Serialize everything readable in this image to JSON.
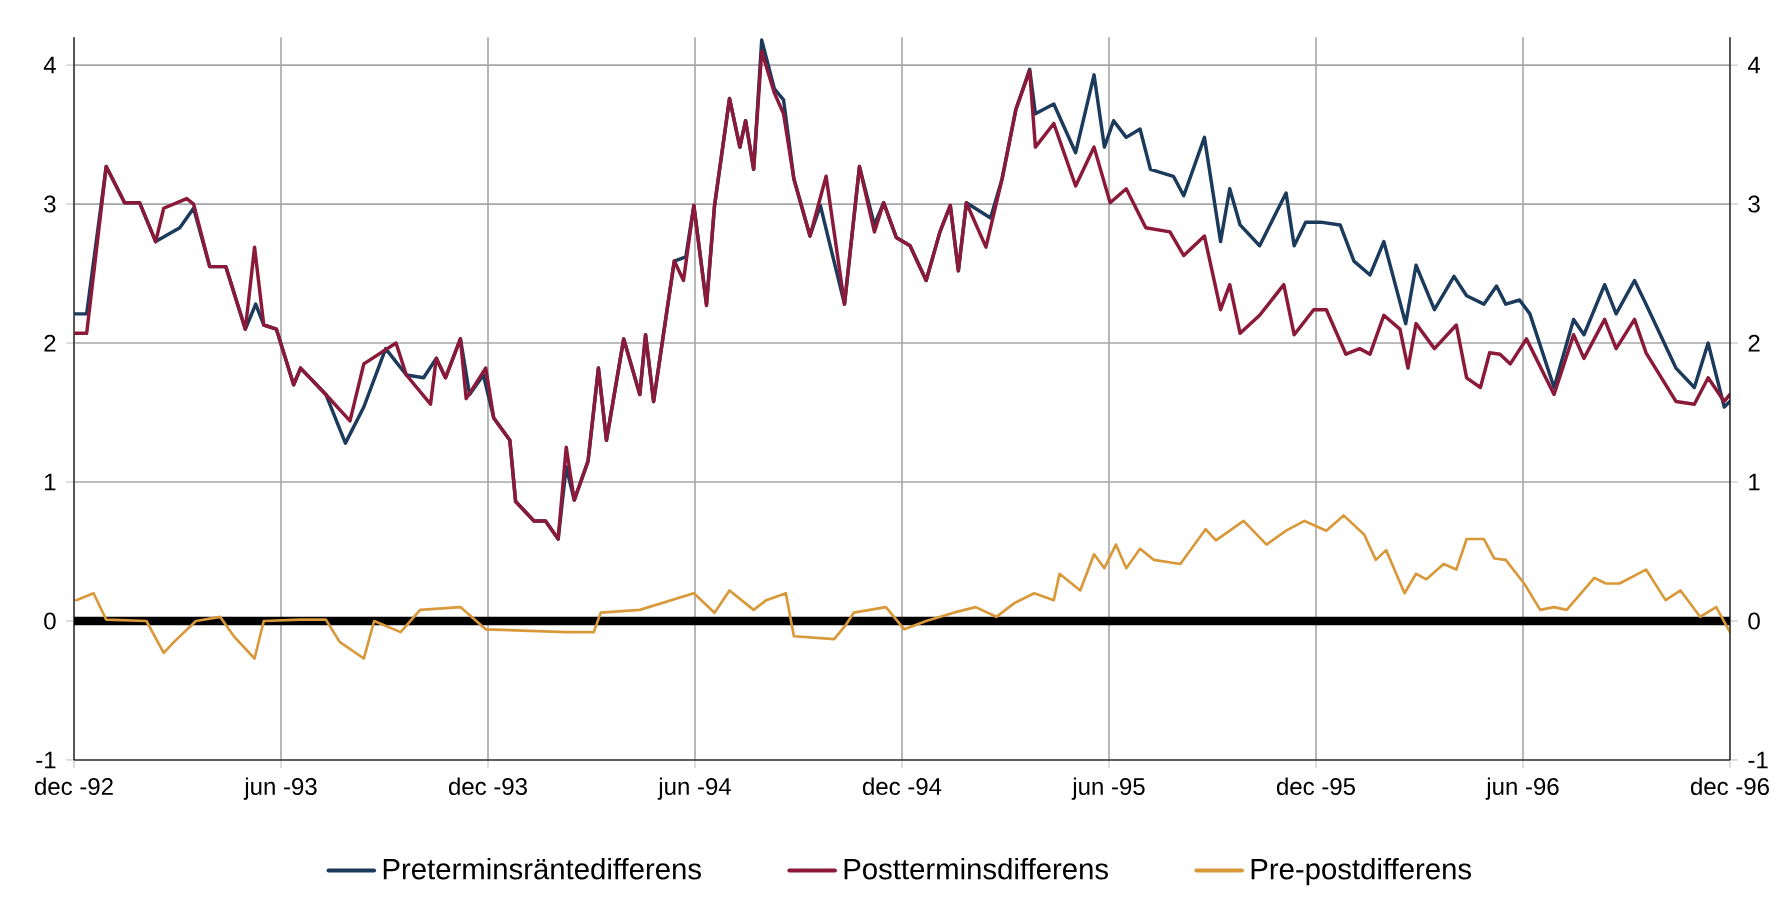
{
  "chart_data": {
    "type": "line",
    "xlim": [
      "1992-12-01",
      "1996-12-01"
    ],
    "xticks": [
      {
        "value": "1992-12-01",
        "label": "dec -92"
      },
      {
        "value": "1993-06-01",
        "label": "jun -93"
      },
      {
        "value": "1993-12-01",
        "label": "dec -93"
      },
      {
        "value": "1994-06-01",
        "label": "jun -94"
      },
      {
        "value": "1994-12-01",
        "label": "dec -94"
      },
      {
        "value": "1995-06-01",
        "label": "jun -95"
      },
      {
        "value": "1995-12-01",
        "label": "dec -95"
      },
      {
        "value": "1996-06-01",
        "label": "jun -96"
      },
      {
        "value": "1996-12-01",
        "label": "dec -96"
      }
    ],
    "ylim": [
      -1,
      4.2
    ],
    "yticks": [
      -1,
      0,
      1,
      2,
      3,
      4
    ],
    "y2lim": [
      -1,
      4.2
    ],
    "y2ticks": [
      -1,
      0,
      1,
      2,
      3,
      4
    ],
    "grid": true,
    "legend": "bottom",
    "ref_lines": [
      {
        "axis": "y",
        "value": 0,
        "color": "#000000"
      }
    ],
    "series": [
      {
        "name": "Preterminsräntedifferens",
        "color": "#1b3a5c",
        "x": [
          "1992-12-01",
          "1992-12-12",
          "1992-12-29",
          "1993-01-15",
          "1993-01-28",
          "1993-02-12",
          "1993-03-03",
          "1993-03-15",
          "1993-03-29",
          "1993-04-13",
          "1993-04-30",
          "1993-05-09",
          "1993-05-16",
          "1993-05-27",
          "1993-06-12",
          "1993-06-18",
          "1993-07-10",
          "1993-07-27",
          "1993-08-13",
          "1993-09-02",
          "1993-09-20",
          "1993-10-05",
          "1993-10-16",
          "1993-10-24",
          "1993-11-07",
          "1993-11-15",
          "1993-11-27",
          "1993-12-06",
          "1993-12-20",
          "1993-12-25",
          "1994-01-11",
          "1994-01-21",
          "1994-02-02",
          "1994-02-09",
          "1994-02-16",
          "1994-02-28",
          "1994-03-07",
          "1994-03-14",
          "1994-03-29",
          "1994-04-13",
          "1994-04-18",
          "1994-04-25",
          "1994-05-06",
          "1994-05-13",
          "1994-05-23",
          "1994-05-30",
          "1994-06-11",
          "1994-06-18",
          "1994-07-01",
          "1994-07-10",
          "1994-07-15",
          "1994-07-22",
          "1994-07-29",
          "1994-08-10",
          "1994-08-18",
          "1994-08-27",
          "1994-09-11",
          "1994-09-20",
          "1994-10-11",
          "1994-10-24",
          "1994-11-07",
          "1994-11-15",
          "1994-11-26",
          "1994-12-08",
          "1994-12-22",
          "1995-01-04",
          "1995-01-13",
          "1995-01-20",
          "1995-01-27",
          "1995-02-18",
          "1995-02-28",
          "1995-03-10",
          "1995-03-22",
          "1995-03-27",
          "1995-04-13",
          "1995-05-02",
          "1995-05-18",
          "1995-05-27",
          "1995-06-05",
          "1995-06-16",
          "1995-06-28",
          "1995-07-07",
          "1995-07-27",
          "1995-08-06",
          "1995-08-24",
          "1995-09-08",
          "1995-09-16",
          "1995-09-25",
          "1995-10-12",
          "1995-10-21",
          "1995-11-05",
          "1995-11-12",
          "1995-11-22",
          "1995-12-05",
          "1995-12-22",
          "1996-01-04",
          "1996-01-18",
          "1996-01-30",
          "1996-02-19",
          "1996-02-28",
          "1996-03-14",
          "1996-04-01",
          "1996-04-12",
          "1996-04-27",
          "1996-05-08",
          "1996-05-16",
          "1996-05-28",
          "1996-06-07",
          "1996-06-28",
          "1996-07-15",
          "1996-07-24",
          "1996-08-12",
          "1996-08-22",
          "1996-09-08",
          "1996-09-18",
          "1996-10-14",
          "1996-10-30",
          "1996-11-12",
          "1996-11-26",
          "1996-12-01"
        ],
        "values": [
          2.21,
          2.21,
          3.27,
          3.01,
          3.01,
          2.73,
          2.83,
          2.97,
          2.55,
          2.55,
          2.1,
          2.28,
          2.13,
          2.1,
          1.7,
          1.82,
          1.63,
          1.28,
          1.54,
          1.96,
          1.77,
          1.75,
          1.89,
          1.75,
          2.03,
          1.63,
          1.77,
          1.46,
          1.3,
          0.86,
          0.72,
          0.72,
          0.59,
          1.11,
          0.87,
          1.15,
          1.82,
          1.3,
          2.03,
          1.63,
          2.06,
          1.58,
          2.2,
          2.59,
          2.62,
          2.99,
          2.28,
          2.99,
          3.76,
          3.41,
          3.6,
          3.25,
          4.18,
          3.83,
          3.75,
          3.18,
          2.77,
          2.99,
          2.28,
          3.27,
          2.85,
          3.01,
          2.76,
          2.7,
          2.45,
          2.8,
          2.99,
          2.52,
          3.01,
          2.9,
          3.18,
          3.68,
          3.97,
          3.65,
          3.72,
          3.37,
          3.93,
          3.41,
          3.6,
          3.48,
          3.54,
          3.25,
          3.2,
          3.06,
          3.48,
          2.73,
          3.11,
          2.85,
          2.7,
          2.85,
          3.08,
          2.7,
          2.87,
          2.87,
          2.85,
          2.59,
          2.49,
          2.73,
          2.14,
          2.56,
          2.24,
          2.48,
          2.34,
          2.28,
          2.41,
          2.28,
          2.31,
          2.21,
          1.68,
          2.17,
          2.06,
          2.42,
          2.21,
          2.45,
          2.28,
          1.82,
          1.68,
          2.0,
          1.54,
          1.58
        ]
      },
      {
        "name": "Postterminsdifferens",
        "color": "#8b1a3a",
        "x": [
          "1992-12-01",
          "1992-12-12",
          "1992-12-29",
          "1993-01-15",
          "1993-01-28",
          "1993-02-12",
          "1993-02-19",
          "1993-03-09",
          "1993-03-15",
          "1993-03-29",
          "1993-04-13",
          "1993-04-30",
          "1993-05-08",
          "1993-05-16",
          "1993-05-27",
          "1993-06-12",
          "1993-06-18",
          "1993-07-10",
          "1993-08-01",
          "1993-08-13",
          "1993-09-11",
          "1993-09-20",
          "1993-10-11",
          "1993-10-16",
          "1993-10-24",
          "1993-11-07",
          "1993-11-12",
          "1993-11-29",
          "1993-12-06",
          "1993-12-20",
          "1993-12-25",
          "1994-01-11",
          "1994-01-21",
          "1994-02-02",
          "1994-02-09",
          "1994-02-16",
          "1994-02-28",
          "1994-03-07",
          "1994-03-14",
          "1994-03-29",
          "1994-04-13",
          "1994-04-18",
          "1994-04-25",
          "1994-05-06",
          "1994-05-13",
          "1994-05-21",
          "1994-05-30",
          "1994-06-11",
          "1994-06-18",
          "1994-07-01",
          "1994-07-10",
          "1994-07-15",
          "1994-07-22",
          "1994-07-29",
          "1994-08-10",
          "1994-08-18",
          "1994-08-27",
          "1994-09-11",
          "1994-09-25",
          "1994-10-11",
          "1994-10-24",
          "1994-11-07",
          "1994-11-15",
          "1994-11-26",
          "1994-12-08",
          "1994-12-22",
          "1995-01-04",
          "1995-01-13",
          "1995-01-20",
          "1995-01-27",
          "1995-02-14",
          "1995-02-28",
          "1995-03-10",
          "1995-03-22",
          "1995-03-27",
          "1995-04-13",
          "1995-05-02",
          "1995-05-18",
          "1995-06-02",
          "1995-06-16",
          "1995-07-03",
          "1995-07-24",
          "1995-08-06",
          "1995-08-24",
          "1995-09-08",
          "1995-09-16",
          "1995-09-25",
          "1995-10-12",
          "1995-11-03",
          "1995-11-12",
          "1995-11-29",
          "1995-12-10",
          "1995-12-27",
          "1996-01-09",
          "1996-01-18",
          "1996-01-30",
          "1996-02-14",
          "1996-02-21",
          "1996-02-28",
          "1996-03-14",
          "1996-04-03",
          "1996-04-12",
          "1996-04-24",
          "1996-05-02",
          "1996-05-11",
          "1996-05-20",
          "1996-06-04",
          "1996-06-28",
          "1996-07-15",
          "1996-07-24",
          "1996-08-12",
          "1996-08-22",
          "1996-09-08",
          "1996-09-18",
          "1996-10-14",
          "1996-10-30",
          "1996-11-12",
          "1996-11-26",
          "1996-12-01"
        ],
        "values": [
          2.07,
          2.07,
          3.27,
          3.01,
          3.01,
          2.73,
          2.97,
          3.04,
          3.0,
          2.55,
          2.55,
          2.1,
          2.69,
          2.13,
          2.1,
          1.7,
          1.82,
          1.63,
          1.44,
          1.85,
          2.0,
          1.77,
          1.56,
          1.89,
          1.75,
          2.03,
          1.6,
          1.82,
          1.46,
          1.3,
          0.86,
          0.72,
          0.72,
          0.59,
          1.25,
          0.87,
          1.15,
          1.82,
          1.3,
          2.03,
          1.63,
          2.06,
          1.58,
          2.2,
          2.59,
          2.45,
          2.99,
          2.27,
          2.99,
          3.76,
          3.41,
          3.6,
          3.25,
          4.1,
          3.8,
          3.65,
          3.18,
          2.77,
          3.2,
          2.28,
          3.27,
          2.8,
          3.01,
          2.76,
          2.7,
          2.45,
          2.8,
          2.99,
          2.52,
          3.01,
          2.69,
          3.18,
          3.68,
          3.96,
          3.41,
          3.58,
          3.13,
          3.41,
          3.01,
          3.11,
          2.83,
          2.8,
          2.63,
          2.77,
          2.24,
          2.42,
          2.07,
          2.2,
          2.42,
          2.06,
          2.24,
          2.24,
          1.92,
          1.96,
          1.92,
          2.2,
          2.1,
          1.82,
          2.14,
          1.96,
          2.13,
          1.75,
          1.68,
          1.93,
          1.92,
          1.85,
          2.03,
          1.63,
          2.06,
          1.89,
          2.17,
          1.96,
          2.17,
          1.93,
          1.58,
          1.56,
          1.75,
          1.58,
          1.63
        ]
      },
      {
        "name": "Pre-postdifferens",
        "color": "#d9993a",
        "x": [
          "1992-12-03",
          "1992-12-18",
          "1992-12-29",
          "1993-02-04",
          "1993-02-19",
          "1993-02-28",
          "1993-03-17",
          "1993-04-08",
          "1993-04-20",
          "1993-05-08",
          "1993-05-16",
          "1993-06-18",
          "1993-07-10",
          "1993-07-22",
          "1993-08-13",
          "1993-08-22",
          "1993-09-15",
          "1993-10-02",
          "1993-11-07",
          "1993-11-29",
          "1994-02-09",
          "1994-03-03",
          "1994-03-09",
          "1994-04-13",
          "1994-05-30",
          "1994-06-18",
          "1994-07-01",
          "1994-07-22",
          "1994-08-03",
          "1994-08-20",
          "1994-08-27",
          "1994-10-02",
          "1994-10-12",
          "1994-10-19",
          "1994-11-17",
          "1994-12-03",
          "1994-12-22",
          "1995-01-16",
          "1995-02-05",
          "1995-02-23",
          "1995-03-09",
          "1995-03-26",
          "1995-04-13",
          "1995-04-18",
          "1995-05-06",
          "1995-05-18",
          "1995-05-27",
          "1995-06-07",
          "1995-06-16",
          "1995-06-28",
          "1995-07-10",
          "1995-08-03",
          "1995-08-25",
          "1995-09-04",
          "1995-09-28",
          "1995-10-18",
          "1995-11-05",
          "1995-11-21",
          "1995-12-10",
          "1995-12-25",
          "1996-01-13",
          "1996-01-23",
          "1996-02-02",
          "1996-02-18",
          "1996-02-28",
          "1996-03-07",
          "1996-03-22",
          "1996-04-03",
          "1996-04-12",
          "1996-04-27",
          "1996-05-06",
          "1996-05-16",
          "1996-06-02",
          "1996-06-16",
          "1996-06-28",
          "1996-07-09",
          "1996-08-03",
          "1996-08-13",
          "1996-08-25",
          "1996-09-18",
          "1996-10-05",
          "1996-10-18",
          "1996-11-05",
          "1996-11-19",
          "1996-12-01"
        ],
        "values": [
          0.15,
          0.2,
          0.01,
          0,
          -0.23,
          -0.15,
          0,
          0.03,
          -0.11,
          -0.27,
          0,
          0.01,
          0.01,
          -0.15,
          -0.27,
          0,
          -0.08,
          0.08,
          0.1,
          -0.06,
          -0.08,
          -0.08,
          0.06,
          0.08,
          0.2,
          0.06,
          0.22,
          0.08,
          0.15,
          0.2,
          -0.11,
          -0.13,
          -0.03,
          0.06,
          0.1,
          -0.06,
          0,
          0.06,
          0.1,
          0.03,
          0.13,
          0.2,
          0.15,
          0.34,
          0.22,
          0.48,
          0.38,
          0.55,
          0.38,
          0.52,
          0.44,
          0.41,
          0.66,
          0.58,
          0.72,
          0.55,
          0.65,
          0.72,
          0.65,
          0.76,
          0.62,
          0.44,
          0.51,
          0.2,
          0.34,
          0.3,
          0.41,
          0.37,
          0.59,
          0.59,
          0.45,
          0.44,
          0.27,
          0.08,
          0.1,
          0.08,
          0.31,
          0.27,
          0.27,
          0.37,
          0.15,
          0.22,
          0.03,
          0.1,
          -0.08
        ]
      }
    ]
  }
}
